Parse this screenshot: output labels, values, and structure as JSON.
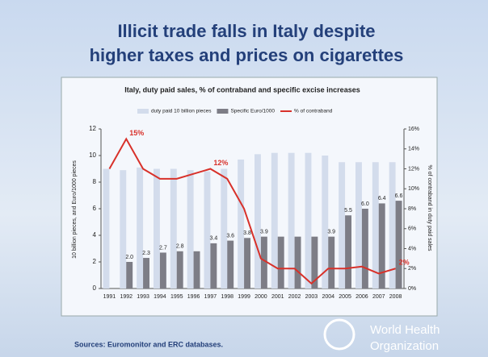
{
  "slide": {
    "title": "Illicit trade falls in Italy despite higher taxes and prices on cigarettes",
    "source": "Sources: Euromonitor and ERC databases.",
    "logo": [
      "World Health",
      "Organization"
    ]
  },
  "chart_data": {
    "type": "bar",
    "title": "Italy, duty paid sales, % of contraband and specific excise increases",
    "ylabel": "10 billion pieces, and Euro/1000 pieces",
    "y2label": "% of contraband in duty paid sales",
    "categories": [
      "1991",
      "1992",
      "1993",
      "1994",
      "1995",
      "1996",
      "1997",
      "1998",
      "1999",
      "2000",
      "2001",
      "2002",
      "2003",
      "2004",
      "2005",
      "2006",
      "2007",
      "2008"
    ],
    "series": [
      {
        "name": "duty paid 10 billion pieces",
        "color": "#d3dcec",
        "kind": "bar",
        "values": [
          9.0,
          8.9,
          9.1,
          9.0,
          9.0,
          8.9,
          8.8,
          9.0,
          9.7,
          10.1,
          10.2,
          10.2,
          10.2,
          10.0,
          9.5,
          9.5,
          9.5,
          9.5
        ]
      },
      {
        "name": "Specific Euro/1000",
        "color": "#7d7d86",
        "kind": "bar",
        "values": [
          null,
          2.0,
          2.3,
          2.7,
          2.8,
          2.8,
          3.4,
          3.6,
          3.8,
          3.9,
          3.9,
          3.9,
          3.9,
          3.9,
          5.5,
          6.0,
          6.4,
          6.6
        ],
        "value_labels": [
          null,
          "2.0",
          "2.3",
          "2.7",
          "2.8",
          null,
          "3.4",
          "3.6",
          "3.8",
          "3.9",
          null,
          null,
          null,
          "3.9",
          "5.5",
          "6.0",
          "6.4",
          "6.6"
        ]
      },
      {
        "name": "% of contraband",
        "color": "#d8312a",
        "kind": "line",
        "axis": "y2",
        "values": [
          12,
          15,
          12,
          11,
          11,
          11.5,
          12,
          11,
          8,
          3,
          2,
          2,
          0.5,
          2,
          2,
          2.2,
          1.5,
          2
        ],
        "value_labels": [
          null,
          "15%",
          null,
          null,
          null,
          null,
          "12%",
          null,
          null,
          null,
          null,
          null,
          null,
          null,
          null,
          null,
          null,
          "2%"
        ]
      }
    ],
    "ylim": [
      0,
      12
    ],
    "yticks": [
      0,
      2,
      4,
      6,
      8,
      10,
      12
    ],
    "y2lim": [
      0,
      16
    ],
    "y2ticks": [
      {
        "value": 0,
        "label": "0%"
      },
      {
        "value": 2,
        "label": "2%"
      },
      {
        "value": 4,
        "label": "4%"
      },
      {
        "value": 6,
        "label": "6%"
      },
      {
        "value": 8,
        "label": "8%"
      },
      {
        "value": 10,
        "label": "10%"
      },
      {
        "value": 12,
        "label": "12%"
      },
      {
        "value": 14,
        "label": "14%"
      },
      {
        "value": 16,
        "label": "16%"
      }
    ]
  }
}
